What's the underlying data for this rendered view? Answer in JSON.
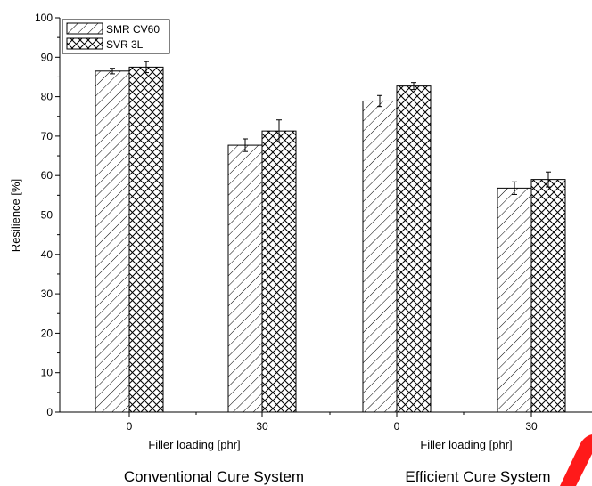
{
  "chart_data": {
    "type": "bar",
    "ylabel": "Resilience [%]",
    "ylim": [
      0,
      100
    ],
    "yticks": [
      "0",
      "10",
      "20",
      "30",
      "40",
      "50",
      "60",
      "70",
      "80",
      "90",
      "100"
    ],
    "categories": [
      "0",
      "30",
      "0",
      "30"
    ],
    "xlabels": [
      "Filler loading [phr]",
      "Filler loading [phr]"
    ],
    "group_labels": [
      "Conventional Cure System",
      "Efficient Cure System"
    ],
    "legend_position": "top-left",
    "series": [
      {
        "name": "SMR CV60",
        "pattern": "diagonal-hatch",
        "values": [
          86.5,
          67.7,
          78.9,
          56.8
        ],
        "errors": [
          0.7,
          1.6,
          1.4,
          1.6
        ]
      },
      {
        "name": "SVR 3L",
        "pattern": "cross-hatch",
        "values": [
          87.5,
          71.3,
          82.7,
          59.0
        ],
        "errors": [
          1.4,
          2.8,
          0.9,
          1.9
        ]
      }
    ],
    "colors": {
      "bar_stroke": "#000000",
      "bar_fill": "#ffffff",
      "stamp": "#ff1a1a"
    }
  }
}
